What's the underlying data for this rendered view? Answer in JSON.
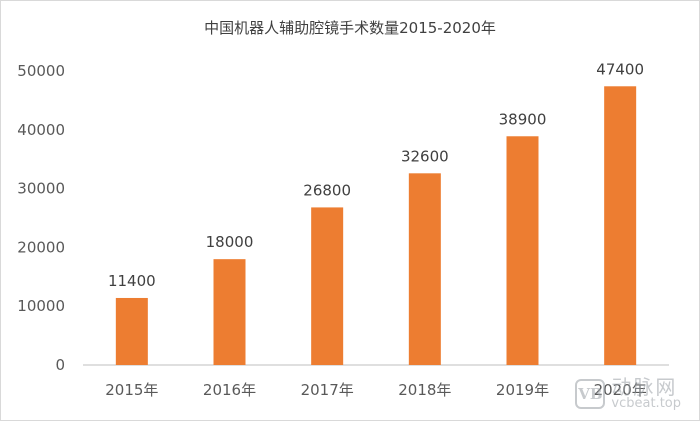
{
  "chart_data": {
    "type": "bar",
    "title": "中国机器人辅助腔镜手术数量2015-2020年",
    "categories": [
      "2015年",
      "2016年",
      "2017年",
      "2018年",
      "2019年",
      "2020年"
    ],
    "values": [
      11400,
      18000,
      26800,
      32600,
      38900,
      47400
    ],
    "ylim": [
      0,
      50000
    ],
    "yticks": [
      "0",
      "10000",
      "20000",
      "30000",
      "40000",
      "50000"
    ],
    "grid": false,
    "legend": "none",
    "bar_color": "#ED7D31",
    "xlabel": "",
    "ylabel": ""
  },
  "watermark": {
    "logo_text": "VB",
    "brand": "动脉网",
    "url": "vcbeat.top"
  }
}
